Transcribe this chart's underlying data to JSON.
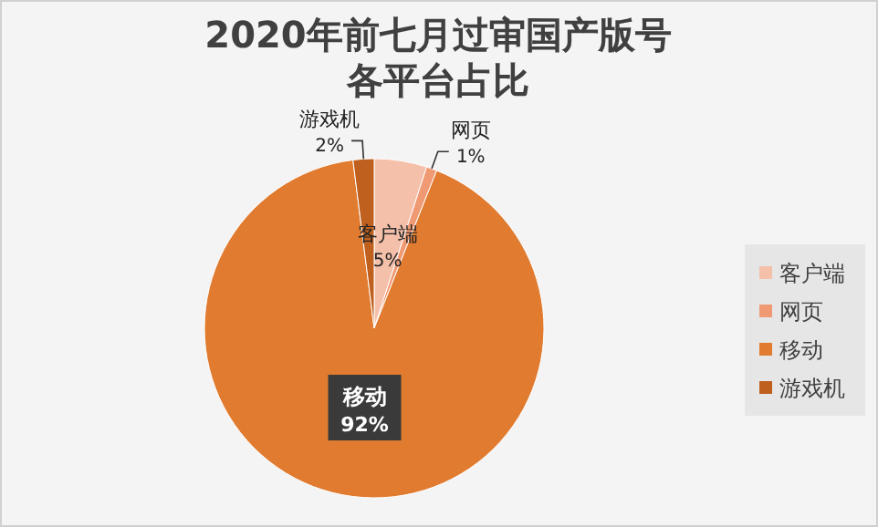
{
  "chart_data": {
    "type": "pie",
    "title": "2020年前七月过审国产版号各平台占比",
    "categories": [
      "客户端",
      "网页",
      "移动",
      "游戏机"
    ],
    "values": [
      5,
      1,
      92,
      2
    ],
    "colors": [
      "#f4c0aa",
      "#f09a74",
      "#e07b30",
      "#c0601f"
    ],
    "value_labels": [
      "5%",
      "1%",
      "92%",
      "2%"
    ],
    "legend": "right"
  }
}
